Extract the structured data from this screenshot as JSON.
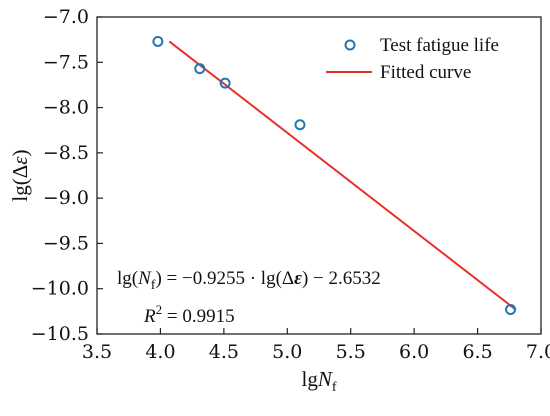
{
  "chart_data": {
    "type": "scatter",
    "xlabel": {
      "base": "lg",
      "var": "N",
      "sub": "f"
    },
    "ylabel": "lg(Δε)",
    "xlim": [
      3.5,
      7.0
    ],
    "ylim": [
      -10.5,
      -7.0
    ],
    "xticks": [
      3.5,
      4.0,
      4.5,
      5.0,
      5.5,
      6.0,
      6.5,
      7.0
    ],
    "yticks": [
      -7.0,
      -7.5,
      -8.0,
      -8.5,
      -9.0,
      -9.5,
      -10.0,
      -10.5
    ],
    "xtick_labels": [
      "3.5",
      "4.0",
      "4.5",
      "5.0",
      "5.5",
      "6.0",
      "6.5",
      "7.0"
    ],
    "ytick_labels": [
      "−7.0",
      "−7.5",
      "−8.0",
      "−8.5",
      "−9.0",
      "−9.5",
      "−10.0",
      "−10.5"
    ],
    "grid": false,
    "legend_position": "top-right",
    "series": [
      {
        "name": "Test fatigue life",
        "kind": "scatter",
        "color": "#1f77b4",
        "x": [
          3.98,
          4.31,
          4.51,
          5.1,
          6.76
        ],
        "y": [
          -7.27,
          -7.57,
          -7.73,
          -8.19,
          -10.23
        ]
      },
      {
        "name": "Fitted curve",
        "kind": "line",
        "color": "#e8302a",
        "x": [
          4.07,
          6.8
        ],
        "y": [
          -7.27,
          -10.23
        ]
      }
    ],
    "annotations": {
      "equation": {
        "lhs_prefix": "lg(",
        "lhs_var": "N",
        "lhs_sub": "f",
        "lhs_suffix": ")",
        "eq": " = −0.9255 · lg(Δ",
        "eps": "ε",
        "rhs": ") − 2.6532"
      },
      "r2": {
        "var": "R",
        "sup": "2",
        "rhs": " = 0.9915"
      }
    }
  }
}
